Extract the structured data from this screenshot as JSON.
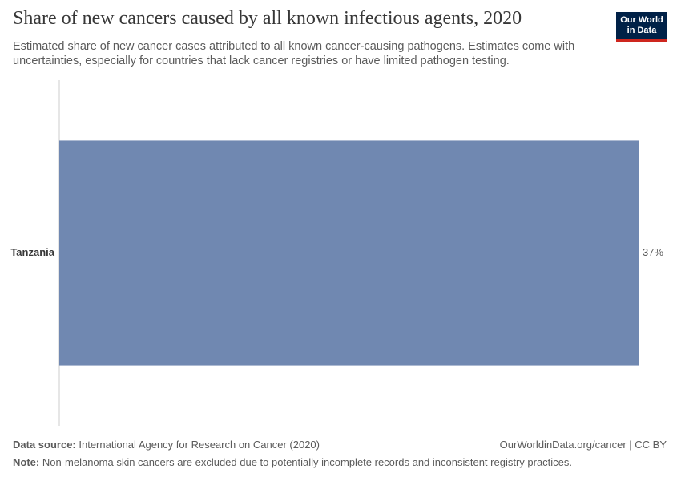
{
  "chart_data": {
    "type": "bar",
    "orientation": "horizontal",
    "title": "Share of new cancers caused by all known infectious agents, 2020",
    "subtitle": "Estimated share of new cancer cases attributed to all known cancer-causing pathogens. Estimates come with uncertainties, especially for countries that lack cancer registries or have limited pathogen testing.",
    "categories": [
      "Tanzania"
    ],
    "values": [
      37
    ],
    "value_labels": [
      "37%"
    ],
    "color": "#7088b1",
    "source_label": "Data source:",
    "source": "International Agency for Research on Cancer (2020)",
    "url": "OurWorldinData.org/cancer | CC BY",
    "note_label": "Note:",
    "note": "Non-melanoma skin cancers are excluded due to potentially incomplete records and inconsistent registry practices.",
    "logo": [
      "Our World",
      "in Data"
    ]
  }
}
